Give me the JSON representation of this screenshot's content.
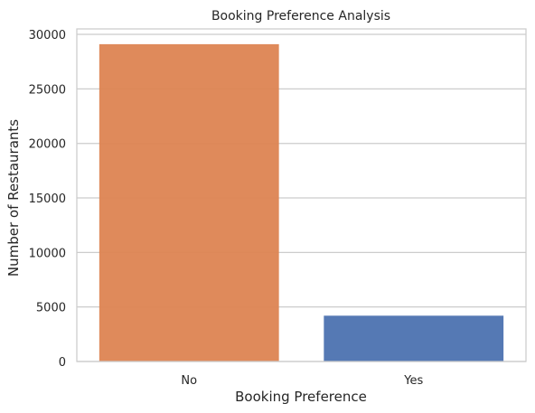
{
  "chart_data": {
    "type": "bar",
    "title": "Booking Preference Analysis",
    "xlabel": "Booking Preference",
    "ylabel": "Number of Restaurants",
    "categories": [
      "No",
      "Yes"
    ],
    "values": [
      29100,
      4200
    ],
    "colors": [
      "#dd8452",
      "#4c72b0"
    ],
    "ylim": [
      0,
      30500
    ],
    "yticks": [
      0,
      5000,
      10000,
      15000,
      20000,
      25000,
      30000
    ],
    "grid": true
  }
}
